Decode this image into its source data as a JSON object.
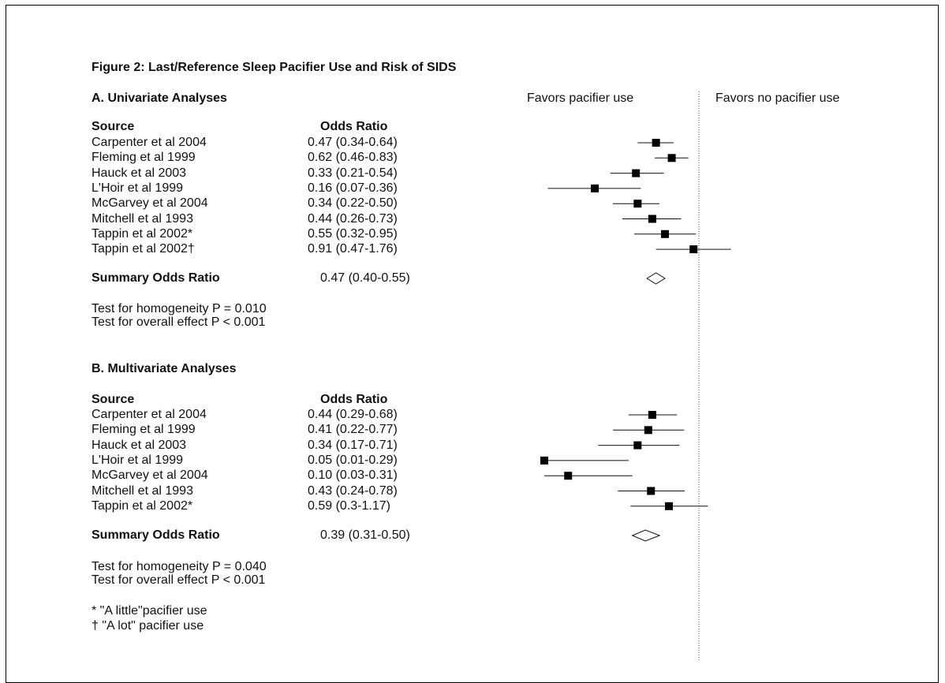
{
  "figure_title": "Figure 2: Last/Reference Sleep Pacifier Use and Risk of SIDS",
  "header_left": "Favors pacifier use",
  "header_right": "Favors no pacifier use",
  "col_source": "Source",
  "col_or": "Odds Ratio",
  "summary_label": "Summary Odds Ratio",
  "sections": [
    {
      "title": "A. Univariate Analyses",
      "summary_text": "0.47 (0.40-0.55)",
      "homogeneity": "Test for homogeneity P = 0.010",
      "overall": "Test for overall effect P < 0.001"
    },
    {
      "title": "B. Multivariate Analyses",
      "summary_text": "0.39 (0.31-0.50)",
      "homogeneity": "Test for homogeneity P = 0.040",
      "overall": "Test for overall effect P < 0.001"
    }
  ],
  "footnotes": [
    "* \"A little\"pacifier use",
    "† \"A lot\" pacifier use"
  ],
  "chart_data": [
    {
      "type": "forest",
      "scale": "log",
      "reference_line": 1,
      "studies": [
        {
          "label": "Carpenter et al 2004",
          "text": "0.47 (0.34-0.64)",
          "or": 0.47,
          "lo": 0.34,
          "hi": 0.64
        },
        {
          "label": "Fleming et al 1999",
          "text": "0.62 (0.46-0.83)",
          "or": 0.62,
          "lo": 0.46,
          "hi": 0.83
        },
        {
          "label": "Hauck et al  2003",
          "text": "0.33 (0.21-0.54)",
          "or": 0.33,
          "lo": 0.21,
          "hi": 0.54
        },
        {
          "label": "L'Hoir et al  1999",
          "text": "0.16 (0.07-0.36)",
          "or": 0.16,
          "lo": 0.07,
          "hi": 0.36
        },
        {
          "label": "McGarvey et al 2004",
          "text": "0.34 (0.22-0.50)",
          "or": 0.34,
          "lo": 0.22,
          "hi": 0.5
        },
        {
          "label": "Mitchell et al  1993",
          "text": "0.44 (0.26-0.73)",
          "or": 0.44,
          "lo": 0.26,
          "hi": 0.73
        },
        {
          "label": "Tappin et al  2002*",
          "text": "0.55 (0.32-0.95)",
          "or": 0.55,
          "lo": 0.32,
          "hi": 0.95
        },
        {
          "label": "Tappin et al  2002†",
          "text": "0.91 (0.47-1.76)",
          "or": 0.91,
          "lo": 0.47,
          "hi": 1.76
        }
      ],
      "summary": {
        "or": 0.47,
        "lo": 0.4,
        "hi": 0.55
      }
    },
    {
      "type": "forest",
      "scale": "log",
      "reference_line": 1,
      "studies": [
        {
          "label": "Carpenter et al 2004",
          "text": "0.44 (0.29-0.68)",
          "or": 0.44,
          "lo": 0.29,
          "hi": 0.68
        },
        {
          "label": "Fleming et al  1999",
          "text": "0.41 (0.22-0.77)",
          "or": 0.41,
          "lo": 0.22,
          "hi": 0.77
        },
        {
          "label": "Hauck et al  2003",
          "text": "0.34 (0.17-0.71)",
          "or": 0.34,
          "lo": 0.17,
          "hi": 0.71
        },
        {
          "label": "L'Hoir et al  1999",
          "text": "0.05 (0.01-0.29)",
          "or": 0.05,
          "lo": 0.01,
          "hi": 0.29
        },
        {
          "label": "McGarvey et al 2004",
          "text": "0.10 (0.03-0.31)",
          "or": 0.1,
          "lo": 0.03,
          "hi": 0.31
        },
        {
          "label": "Mitchell et al  1993",
          "text": "0.43 (0.24-0.78)",
          "or": 0.43,
          "lo": 0.24,
          "hi": 0.78
        },
        {
          "label": "Tappin et al  2002*",
          "text": "0.59 (0.3-1.17)",
          "or": 0.59,
          "lo": 0.3,
          "hi": 1.17
        }
      ],
      "summary": {
        "or": 0.39,
        "lo": 0.31,
        "hi": 0.5
      }
    }
  ]
}
